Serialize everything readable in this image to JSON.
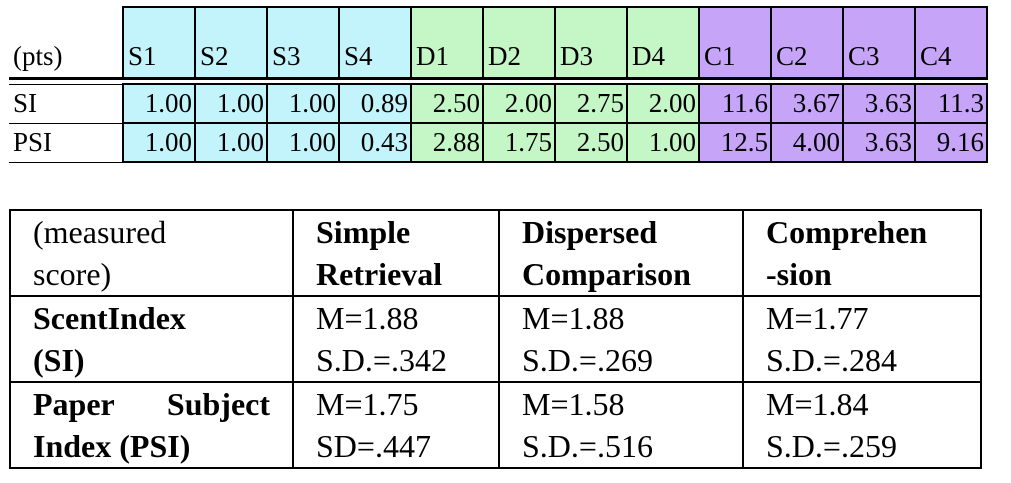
{
  "colors": {
    "simple": "#c3f3fb",
    "dispersed": "#c5f6c5",
    "comprehension": "#c6a4f8"
  },
  "table1": {
    "corner_label": "(pts)",
    "columns": [
      {
        "label": "S1",
        "group": "simple"
      },
      {
        "label": "S2",
        "group": "simple"
      },
      {
        "label": "S3",
        "group": "simple"
      },
      {
        "label": "S4",
        "group": "simple"
      },
      {
        "label": "D1",
        "group": "dispersed"
      },
      {
        "label": "D2",
        "group": "dispersed"
      },
      {
        "label": "D3",
        "group": "dispersed"
      },
      {
        "label": "D4",
        "group": "dispersed"
      },
      {
        "label": "C1",
        "group": "comprehension"
      },
      {
        "label": "C2",
        "group": "comprehension"
      },
      {
        "label": "C3",
        "group": "comprehension"
      },
      {
        "label": "C4",
        "group": "comprehension"
      }
    ],
    "rows": [
      {
        "label": "SI",
        "values": [
          "1.00",
          "1.00",
          "1.00",
          "0.89",
          "2.50",
          "2.00",
          "2.75",
          "2.00",
          "11.6",
          "3.67",
          "3.63",
          "11.3"
        ]
      },
      {
        "label": "PSI",
        "values": [
          "1.00",
          "1.00",
          "1.00",
          "0.43",
          "2.88",
          "1.75",
          "2.50",
          "1.00",
          "12.5",
          "4.00",
          "3.63",
          "9.16"
        ]
      }
    ]
  },
  "table2": {
    "header": {
      "corner": [
        "(measured",
        "score)"
      ],
      "simple": [
        "Simple",
        "Retrieval"
      ],
      "dispersed": [
        "Dispersed",
        "Comparison"
      ],
      "comprehension": [
        "Comprehen",
        "-sion"
      ]
    },
    "rows": [
      {
        "label": [
          "ScentIndex",
          "(SI)"
        ],
        "simple": [
          "M=1.88",
          "S.D.=.342"
        ],
        "dispersed": [
          "M=1.88",
          "S.D.=.269"
        ],
        "comprehension": [
          "M=1.77",
          "S.D.=.284"
        ]
      },
      {
        "label": [
          "Paper Subject",
          "Index (PSI)"
        ],
        "simple": [
          "M=1.75",
          "SD=.447"
        ],
        "dispersed": [
          "M=1.58",
          "S.D.=.516"
        ],
        "comprehension": [
          "M=1.84",
          "S.D.=.259"
        ]
      }
    ]
  }
}
